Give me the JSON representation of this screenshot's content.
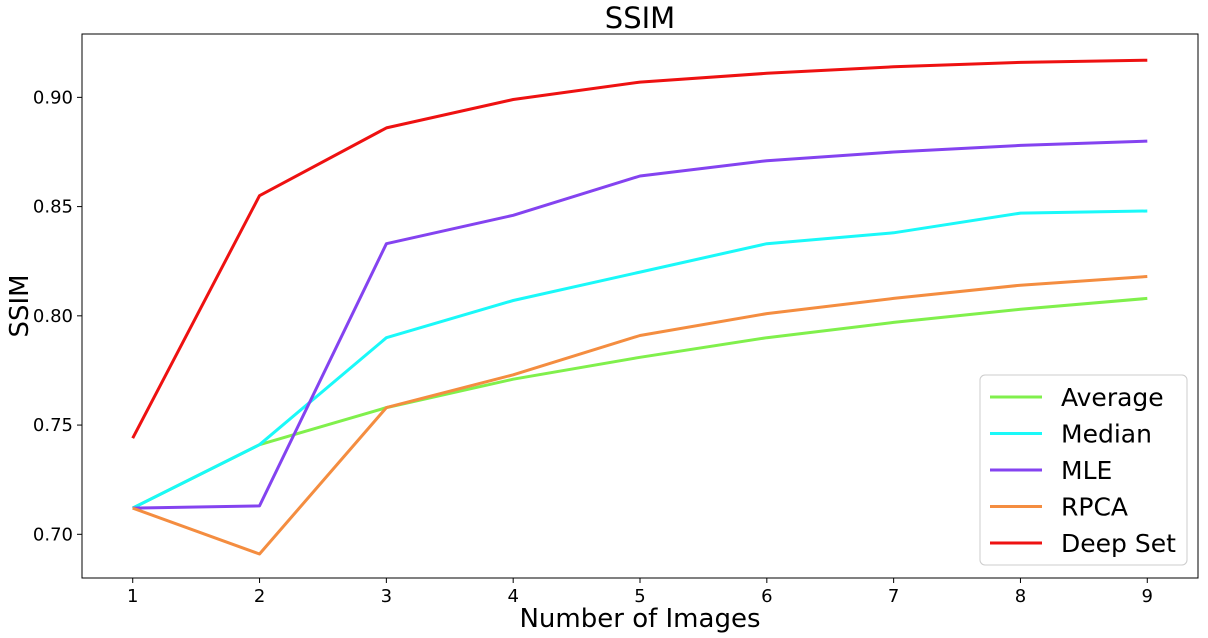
{
  "chart_data": {
    "type": "line",
    "title": "SSIM",
    "xlabel": "Number of Images",
    "ylabel": "SSIM",
    "x": [
      1,
      2,
      3,
      4,
      5,
      6,
      7,
      8,
      9
    ],
    "xlim": [
      0.6,
      9.4
    ],
    "ylim": [
      0.68,
      0.929
    ],
    "xticks": [
      "1",
      "2",
      "3",
      "4",
      "5",
      "6",
      "7",
      "8",
      "9"
    ],
    "yticks": [
      "0.70",
      "0.75",
      "0.80",
      "0.85",
      "0.90"
    ],
    "grid": false,
    "legend_position": "lower-right",
    "series": [
      {
        "name": "Average",
        "color": "#80f04c",
        "values": [
          0.712,
          0.741,
          0.758,
          0.771,
          0.781,
          0.79,
          0.797,
          0.803,
          0.808
        ]
      },
      {
        "name": "Median",
        "color": "#1af9f9",
        "values": [
          0.712,
          0.741,
          0.79,
          0.807,
          0.82,
          0.833,
          0.838,
          0.847,
          0.848
        ]
      },
      {
        "name": "MLE",
        "color": "#8443f0",
        "values": [
          0.712,
          0.713,
          0.833,
          0.846,
          0.864,
          0.871,
          0.875,
          0.878,
          0.88
        ]
      },
      {
        "name": "RPCA",
        "color": "#f48d40",
        "values": [
          0.712,
          0.691,
          0.758,
          0.773,
          0.791,
          0.801,
          0.808,
          0.814,
          0.818
        ]
      },
      {
        "name": "Deep Set",
        "color": "#ee1111",
        "values": [
          0.744,
          0.855,
          0.886,
          0.899,
          0.907,
          0.911,
          0.914,
          0.916,
          0.917
        ]
      }
    ]
  }
}
